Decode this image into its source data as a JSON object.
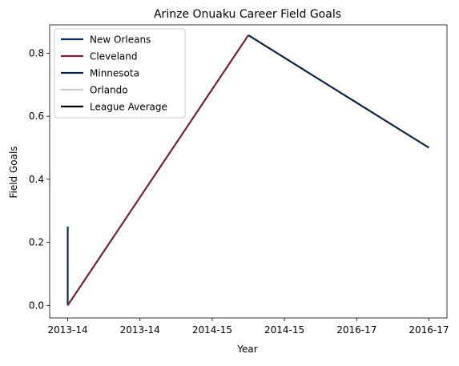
{
  "chart_data": {
    "type": "line",
    "title": "Arinze Onuaku Career Field Goals",
    "xlabel": "Year",
    "ylabel": "Field Goals",
    "x_tick_labels": [
      "2013-14",
      "2013-14",
      "2014-15",
      "2014-15",
      "2016-17",
      "2016-17"
    ],
    "x_ticks": [
      0,
      1,
      2,
      3,
      4,
      5
    ],
    "xlim": [
      -0.25,
      5.25
    ],
    "y_ticks": [
      0.0,
      0.2,
      0.4,
      0.6,
      0.8
    ],
    "y_tick_labels": [
      "0.0",
      "0.2",
      "0.4",
      "0.6",
      "0.8"
    ],
    "ylim": [
      -0.04,
      0.89
    ],
    "legend_position": "top-left",
    "series": [
      {
        "name": "New Orleans",
        "color": "#0c2c56",
        "points": [
          [
            0,
            0.0
          ],
          [
            0,
            0.25
          ]
        ]
      },
      {
        "name": "Cleveland",
        "color": "#6f263d",
        "points": [
          [
            0,
            0.0
          ],
          [
            2.5,
            0.857
          ]
        ]
      },
      {
        "name": "Minnesota",
        "color": "#0c2340",
        "points": [
          [
            2.5,
            0.857
          ],
          [
            5,
            0.5
          ]
        ]
      },
      {
        "name": "Orlando",
        "color": "#c4ced4",
        "points": []
      },
      {
        "name": "League Average",
        "color": "#000000",
        "points": []
      }
    ]
  }
}
